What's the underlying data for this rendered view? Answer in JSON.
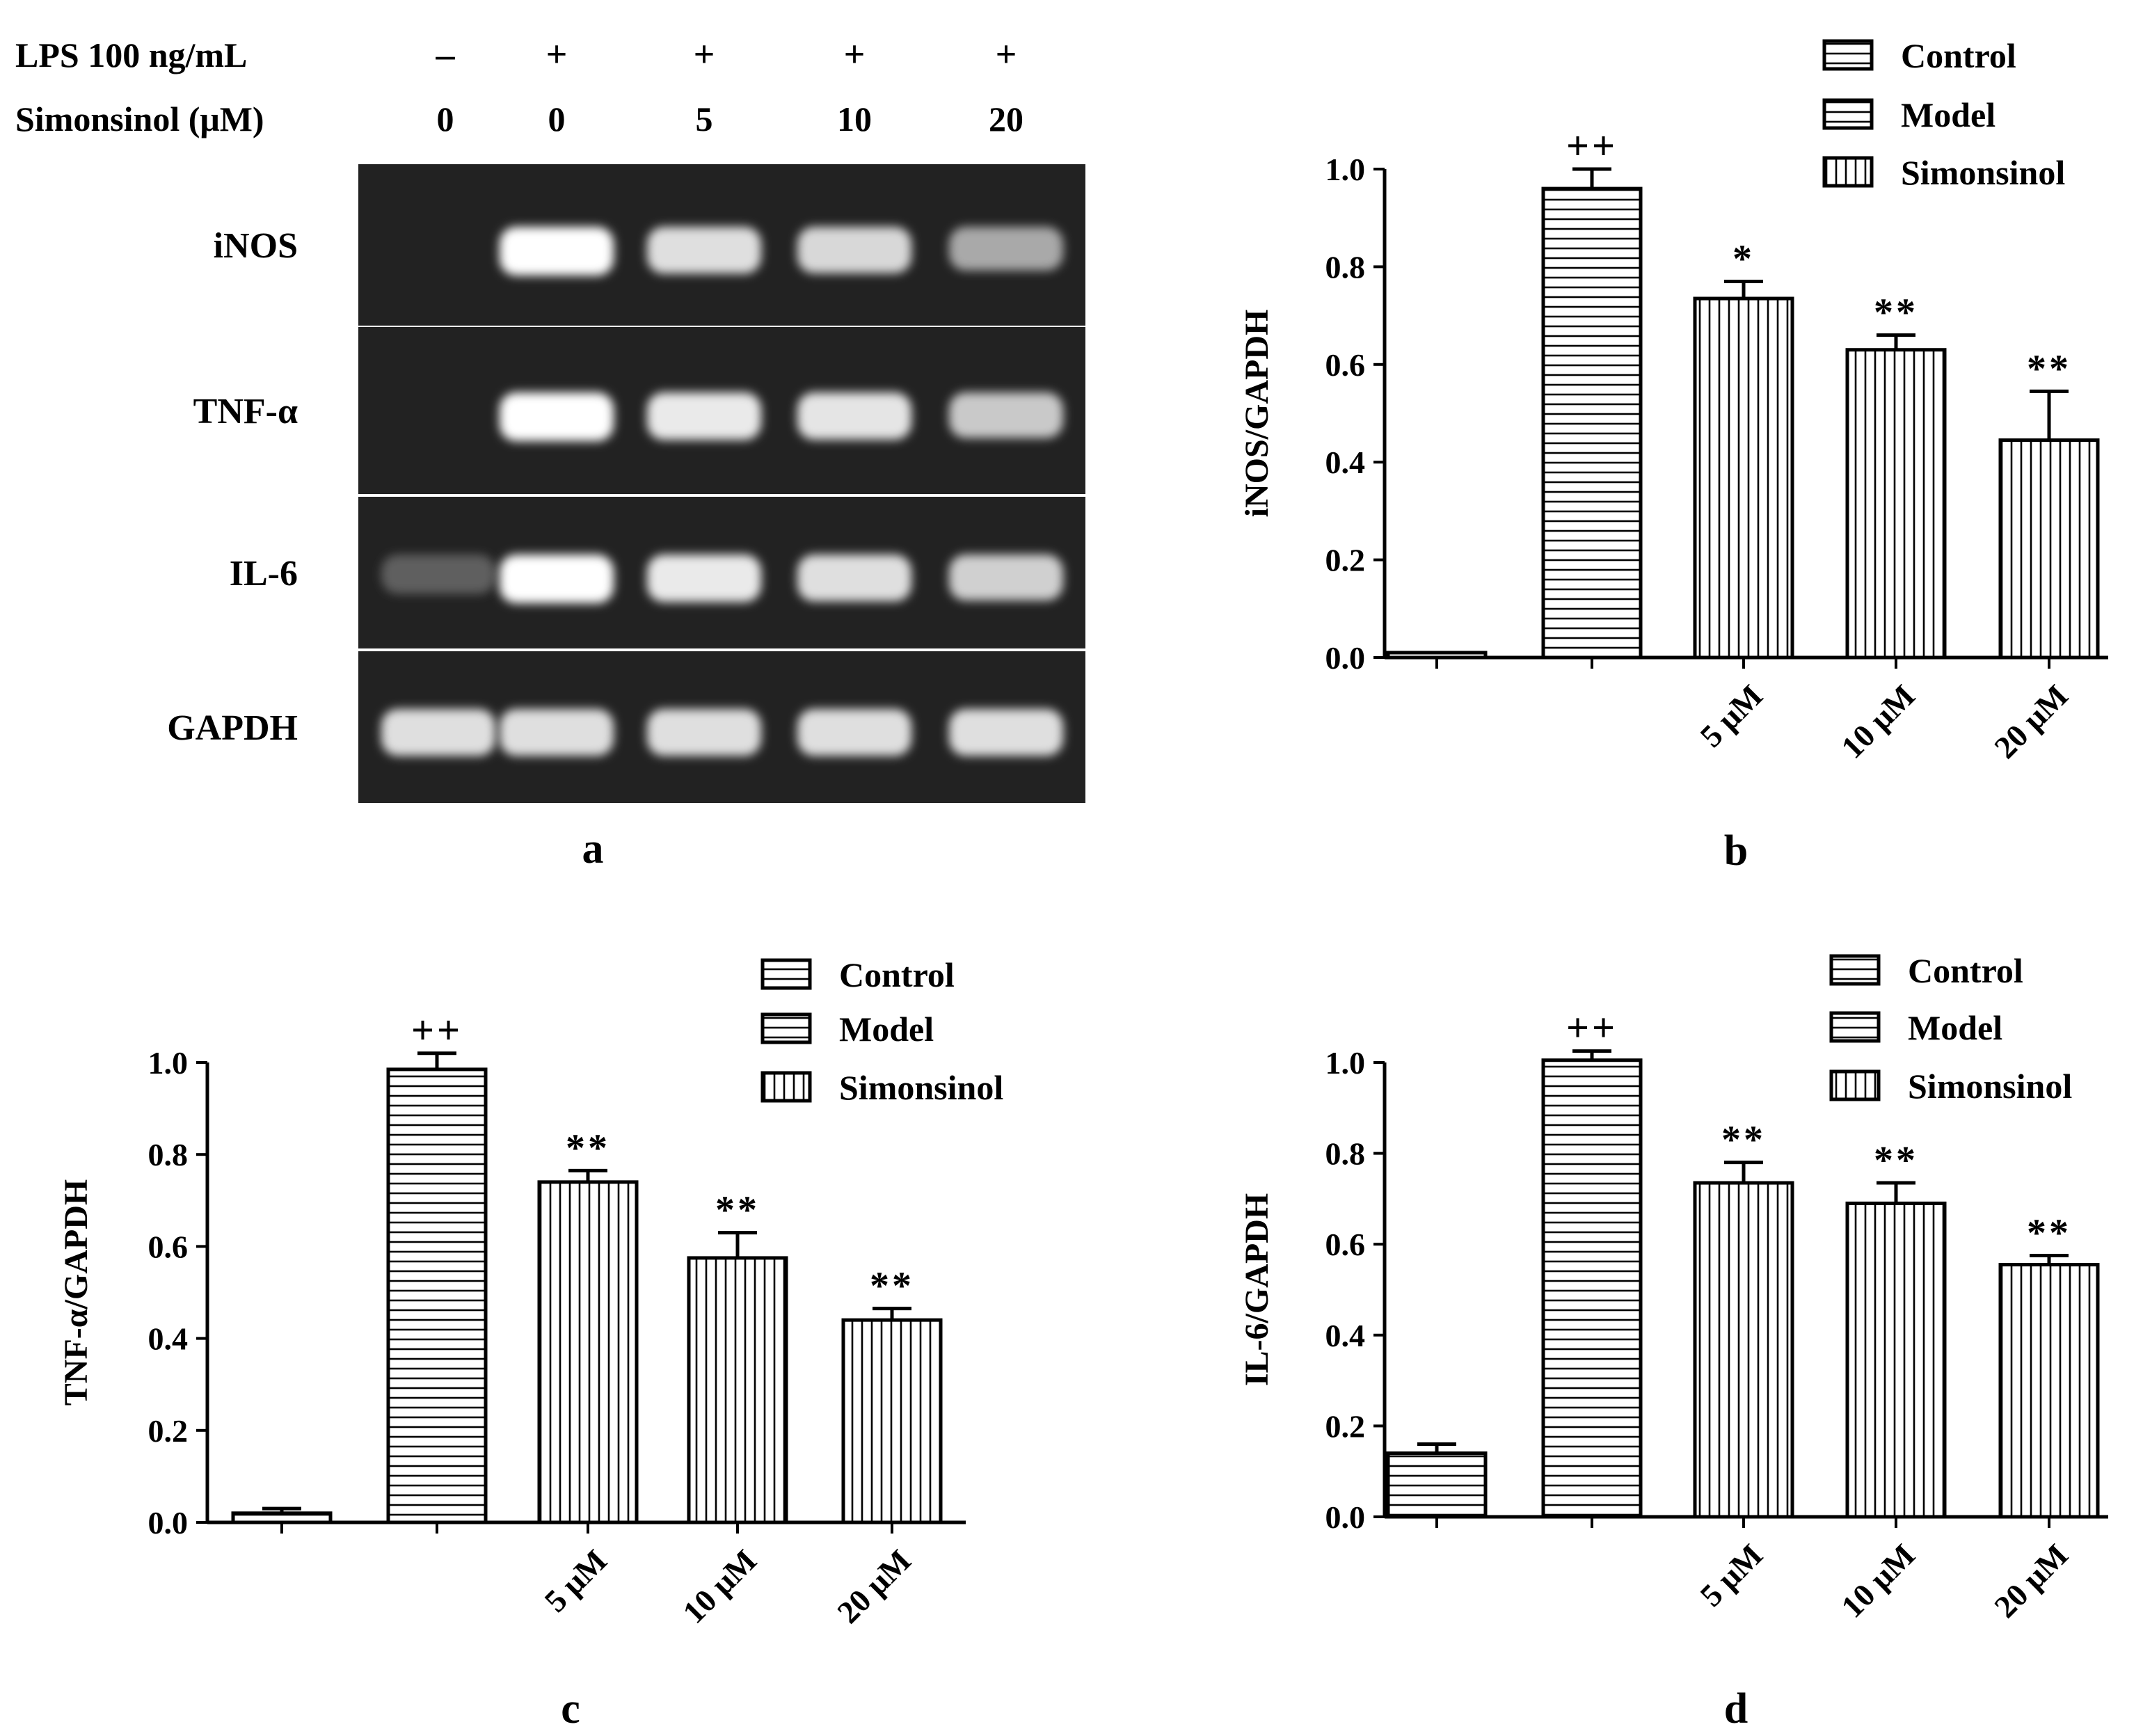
{
  "panel_a": {
    "label": "a",
    "row_headers": [
      "LPS  100 ng/mL",
      "Simonsinol (μM)"
    ],
    "lps": [
      "–",
      "+",
      "+",
      "+",
      "+"
    ],
    "doses": [
      "0",
      "0",
      "5",
      "10",
      "20"
    ],
    "genes": [
      "iNOS",
      "TNF-α",
      "IL-6",
      "GAPDH"
    ],
    "band_intensity": [
      [
        0.0,
        1.0,
        0.85,
        0.82,
        0.6
      ],
      [
        0.0,
        1.0,
        0.9,
        0.88,
        0.75
      ],
      [
        0.25,
        1.0,
        0.9,
        0.85,
        0.78
      ],
      [
        0.85,
        0.85,
        0.85,
        0.85,
        0.85
      ]
    ]
  },
  "patterns": {
    "Control": "horizontal",
    "Model": "horizontal",
    "Simonsinol": "vertical"
  },
  "chart_data": [
    {
      "panel": "b",
      "type": "bar",
      "ylabel": "iNOS/GAPDH",
      "categories": [
        "",
        "",
        "5 μM",
        "10 μM",
        "20 μM"
      ],
      "groups": [
        "Control",
        "Model",
        "Simonsinol",
        "Simonsinol",
        "Simonsinol"
      ],
      "values": [
        0.01,
        0.96,
        0.735,
        0.63,
        0.445
      ],
      "errors": [
        0.0,
        0.04,
        0.035,
        0.03,
        0.1
      ],
      "annotations": [
        "",
        "++",
        "*",
        "**",
        "**"
      ],
      "ylim": [
        0,
        1.0
      ],
      "yticks": [
        "0.0",
        "0.2",
        "0.4",
        "0.6",
        "0.8",
        "1.0"
      ],
      "legend": [
        "Control",
        "Model",
        "Simonsinol"
      ],
      "legend_position": "top-right"
    },
    {
      "panel": "c",
      "type": "bar",
      "ylabel": "TNF-α/GAPDH",
      "categories": [
        "",
        "",
        "5 μM",
        "10 μM",
        "20 μM"
      ],
      "groups": [
        "Control",
        "Model",
        "Simonsinol",
        "Simonsinol",
        "Simonsinol"
      ],
      "values": [
        0.02,
        0.985,
        0.74,
        0.575,
        0.44
      ],
      "errors": [
        0.01,
        0.035,
        0.025,
        0.055,
        0.025
      ],
      "annotations": [
        "",
        "++",
        "**",
        "**",
        "**"
      ],
      "ylim": [
        0,
        1.0
      ],
      "yticks": [
        "0.0",
        "0.2",
        "0.4",
        "0.6",
        "0.8",
        "1.0"
      ],
      "legend": [
        "Control",
        "Model",
        "Simonsinol"
      ],
      "legend_position": "top-right"
    },
    {
      "panel": "d",
      "type": "bar",
      "ylabel": "IL-6/GAPDH",
      "categories": [
        "",
        "",
        "5 μM",
        "10 μM",
        "20 μM"
      ],
      "groups": [
        "Control",
        "Model",
        "Simonsinol",
        "Simonsinol",
        "Simonsinol"
      ],
      "values": [
        0.14,
        1.005,
        0.735,
        0.69,
        0.555
      ],
      "errors": [
        0.02,
        0.02,
        0.045,
        0.045,
        0.02
      ],
      "annotations": [
        "",
        "++",
        "**",
        "**",
        "**"
      ],
      "ylim": [
        0,
        1.0
      ],
      "yticks": [
        "0.0",
        "0.2",
        "0.4",
        "0.6",
        "0.8",
        "1.0"
      ],
      "legend": [
        "Control",
        "Model",
        "Simonsinol"
      ],
      "legend_position": "top-right"
    }
  ]
}
